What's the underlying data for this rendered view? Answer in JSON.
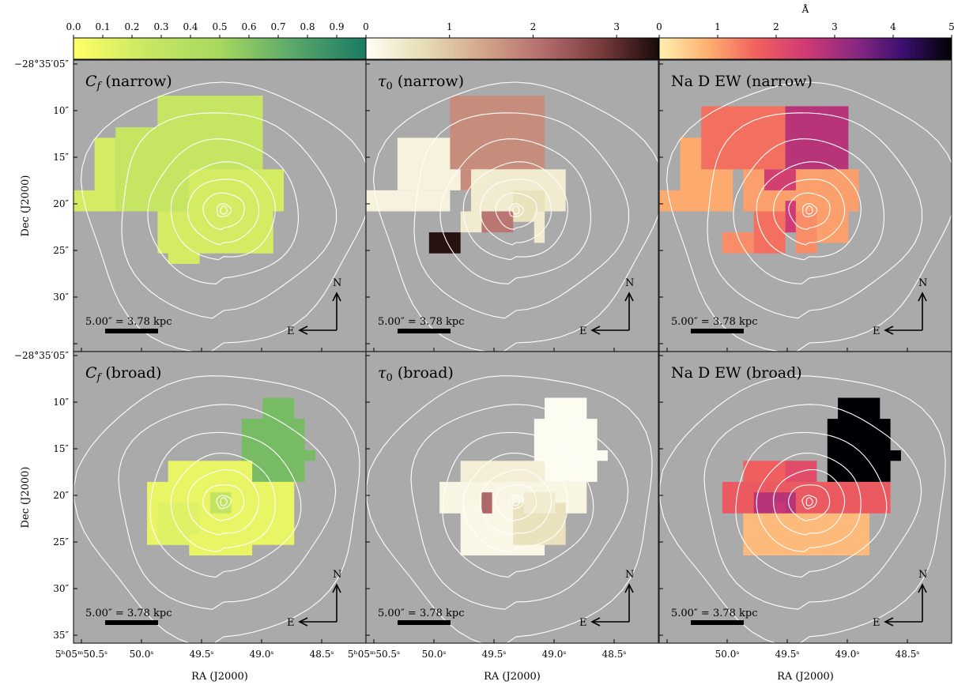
{
  "chart_data": {
    "type": "heatmap",
    "colorbars": [
      {
        "label": "",
        "range": [
          0,
          1
        ],
        "ticks": [
          "0.0",
          "0.1",
          "0.2",
          "0.3",
          "0.4",
          "0.5",
          "0.6",
          "0.7",
          "0.8",
          "0.9"
        ],
        "stops": [
          "#ffff66",
          "#c9e763",
          "#a6d85e",
          "#5aa86a",
          "#1a7a62"
        ]
      },
      {
        "label": "",
        "range": [
          0,
          3.5
        ],
        "ticks": [
          "0",
          "1",
          "2",
          "3"
        ],
        "stops": [
          "#fffef5",
          "#e6ddb4",
          "#d3a589",
          "#b56e6e",
          "#7a3c3c",
          "#1a0a0a"
        ]
      },
      {
        "label": "Å",
        "range": [
          0,
          5
        ],
        "ticks": [
          "0",
          "1",
          "2",
          "3",
          "4",
          "5"
        ],
        "stops": [
          "#fff0b0",
          "#fdb070",
          "#f1605d",
          "#d03a75",
          "#8c2981",
          "#3b0f70",
          "#000004"
        ]
      }
    ],
    "panels": [
      {
        "title_text": "(narrow)",
        "title_sym": "C",
        "title_sub": "f"
      },
      {
        "title_text": "(narrow)",
        "title_sym": "τ",
        "title_sub": "0"
      },
      {
        "title_text": "Na D EW (narrow)",
        "title_sym": "",
        "title_sub": ""
      },
      {
        "title_text": "(broad)",
        "title_sym": "C",
        "title_sub": "f"
      },
      {
        "title_text": "(broad)",
        "title_sym": "τ",
        "title_sub": "0"
      },
      {
        "title_text": "Na D EW (broad)",
        "title_sym": "",
        "title_sub": ""
      }
    ],
    "y_ticks": [
      {
        "label": "−28°35′05″",
        "dec_arcsec_offset": 5
      },
      {
        "label": "10″",
        "dec_arcsec_offset": 10
      },
      {
        "label": "15″",
        "dec_arcsec_offset": 15
      },
      {
        "label": "20″",
        "dec_arcsec_offset": 20
      },
      {
        "label": "25″",
        "dec_arcsec_offset": 25
      },
      {
        "label": "30″",
        "dec_arcsec_offset": 30
      },
      {
        "label": "35″",
        "dec_arcsec_offset": 35
      }
    ],
    "x_ticks": [
      "5ʰ05ᵐ50.5ˢ",
      "50.0ˢ",
      "49.5ˢ",
      "49.0ˢ",
      "48.5ˢ"
    ],
    "xlabel": "RA (J2000)",
    "ylabel": "Dec (J2000)",
    "scalebar_label": "5.00″ = 3.78 kpc",
    "compass": {
      "north": "N",
      "east": "E"
    },
    "background": "#aaaaaa"
  }
}
